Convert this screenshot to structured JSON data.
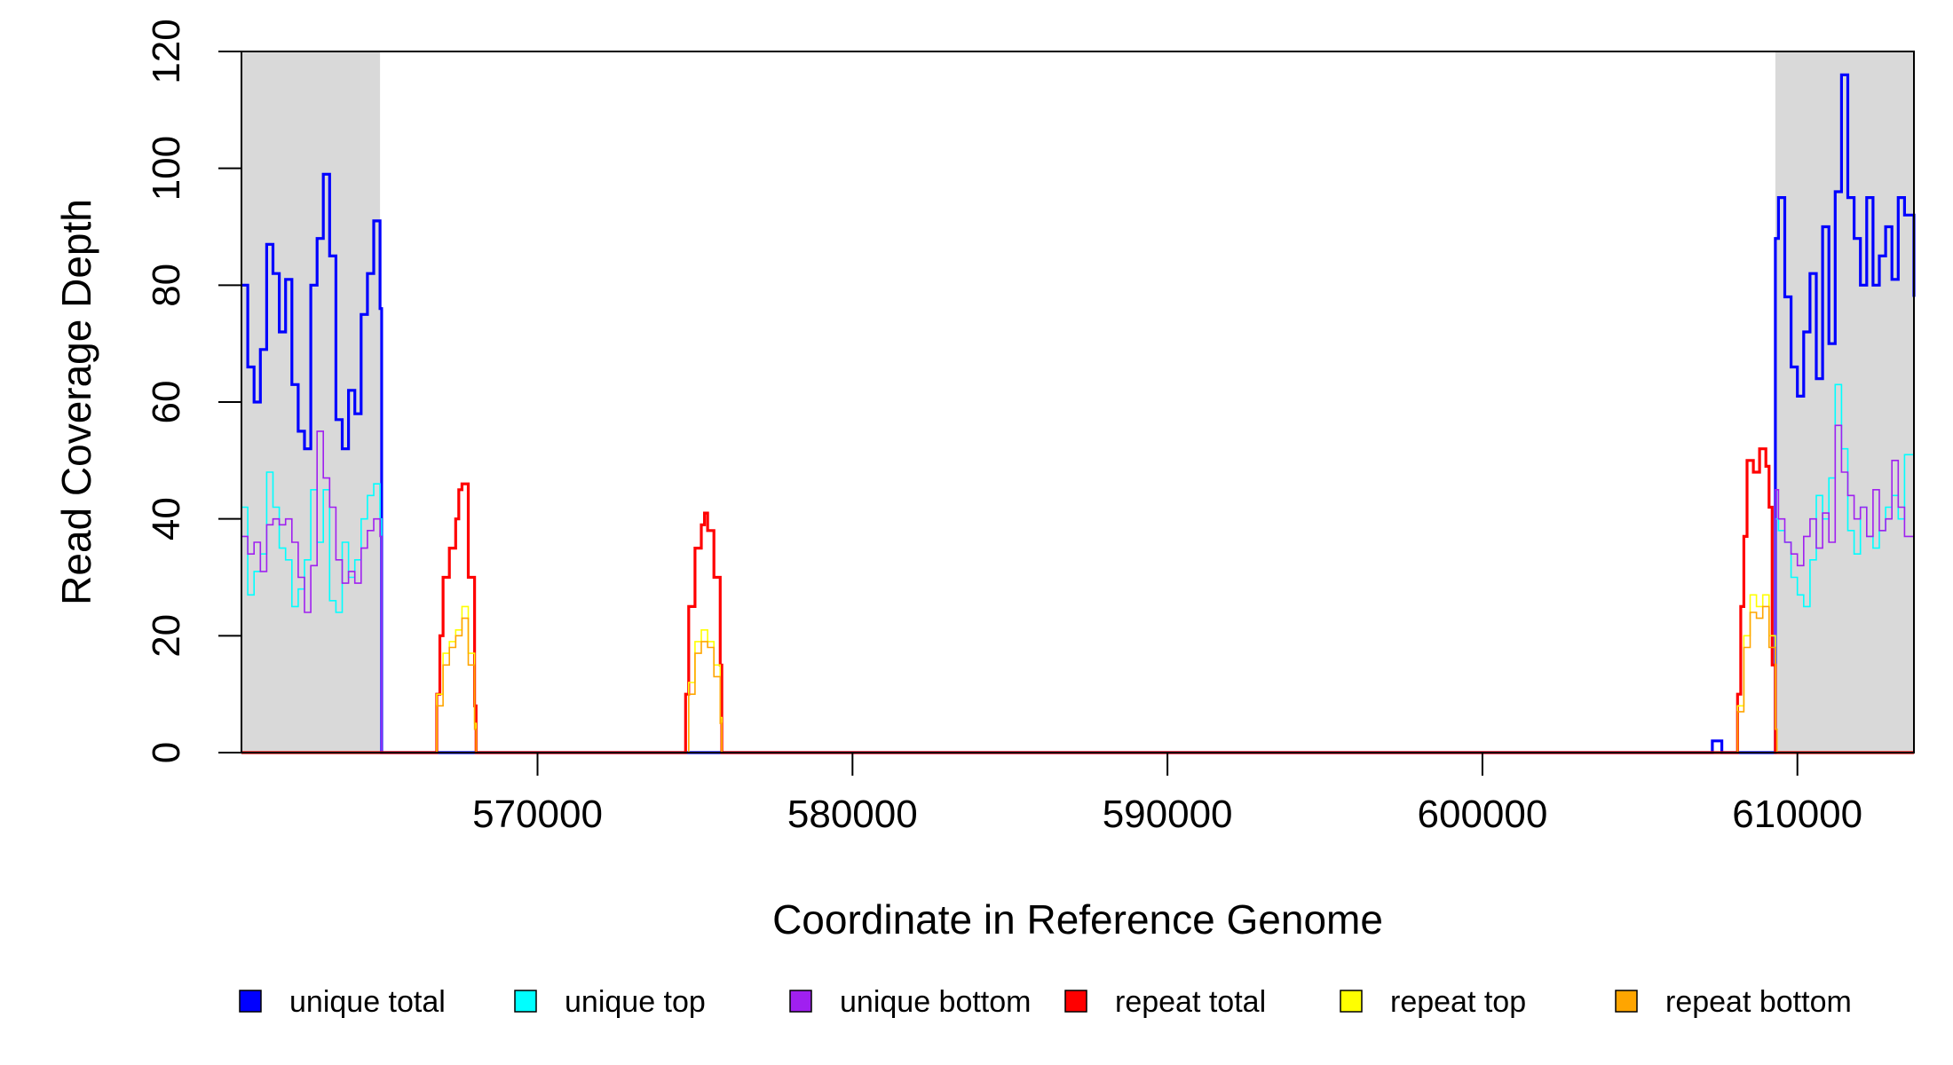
{
  "chart_data": {
    "type": "line",
    "title": "",
    "xlabel": "Coordinate in Reference Genome",
    "ylabel": "Read Coverage Depth",
    "xlim": [
      560600,
      613700
    ],
    "ylim": [
      0,
      120
    ],
    "x_ticks": [
      570000,
      580000,
      590000,
      600000,
      610000
    ],
    "x_tick_labels": [
      "570000",
      "580000",
      "590000",
      "600000",
      "610000"
    ],
    "y_ticks": [
      0,
      20,
      40,
      60,
      80,
      100,
      120
    ],
    "y_tick_labels": [
      "0",
      "20",
      "40",
      "60",
      "80",
      "100",
      "120"
    ],
    "grid": false,
    "legend_position": "bottom",
    "shaded_regions": [
      {
        "x0": 560600,
        "x1": 565000
      },
      {
        "x0": 609300,
        "x1": 613700
      }
    ],
    "series": [
      {
        "name": "unique total",
        "color": "#0000ff",
        "x": [
          560600,
          560800,
          561000,
          561200,
          561400,
          561600,
          561800,
          562000,
          562200,
          562400,
          562600,
          562800,
          563000,
          563200,
          563400,
          563600,
          563800,
          564000,
          564200,
          564400,
          564600,
          564800,
          565000,
          565050,
          566000,
          567000,
          568000,
          569000,
          570000,
          575000,
          580000,
          590000,
          600000,
          607200,
          607300,
          607500,
          607600,
          608000,
          609200,
          609300,
          609400,
          609600,
          609800,
          610000,
          610200,
          610400,
          610600,
          610800,
          611000,
          611200,
          611400,
          611600,
          611800,
          612000,
          612200,
          612400,
          612600,
          612800,
          613000,
          613200,
          613400,
          613700
        ],
        "values": [
          80,
          66,
          60,
          69,
          87,
          82,
          72,
          81,
          63,
          55,
          52,
          80,
          88,
          99,
          85,
          57,
          52,
          62,
          58,
          75,
          82,
          91,
          76,
          0,
          0,
          0,
          0,
          0,
          0,
          0,
          0,
          0,
          0,
          0,
          2,
          2,
          0,
          0,
          0,
          88,
          95,
          78,
          66,
          61,
          72,
          82,
          64,
          90,
          70,
          96,
          116,
          95,
          88,
          80,
          95,
          80,
          85,
          90,
          81,
          95,
          92,
          78
        ],
        "stroke_width": 3.2
      },
      {
        "name": "unique top",
        "color": "#00ffff",
        "x": [
          560600,
          560800,
          561000,
          561200,
          561400,
          561600,
          561800,
          562000,
          562200,
          562400,
          562600,
          562800,
          563000,
          563200,
          563400,
          563600,
          563800,
          564000,
          564200,
          564400,
          564600,
          564800,
          565000,
          565050,
          609300,
          609400,
          609600,
          609800,
          610000,
          610200,
          610400,
          610600,
          610800,
          611000,
          611200,
          611400,
          611600,
          611800,
          612000,
          612200,
          612400,
          612600,
          612800,
          613000,
          613200,
          613400,
          613700
        ],
        "values": [
          42,
          27,
          31,
          34,
          48,
          42,
          35,
          33,
          25,
          28,
          33,
          45,
          36,
          45,
          26,
          24,
          36,
          30,
          33,
          40,
          44,
          46,
          40,
          0,
          40,
          38,
          36,
          30,
          27,
          25,
          33,
          44,
          40,
          47,
          63,
          52,
          38,
          34,
          42,
          37,
          35,
          38,
          42,
          44,
          40,
          51,
          42
        ],
        "stroke_width": 1.6
      },
      {
        "name": "unique bottom",
        "color": "#a020f0",
        "x": [
          560600,
          560800,
          561000,
          561200,
          561400,
          561600,
          561800,
          562000,
          562200,
          562400,
          562600,
          562800,
          563000,
          563200,
          563400,
          563600,
          563800,
          564000,
          564200,
          564400,
          564600,
          564800,
          565000,
          565050,
          609300,
          609400,
          609600,
          609800,
          610000,
          610200,
          610400,
          610600,
          610800,
          611000,
          611200,
          611400,
          611600,
          611800,
          612000,
          612200,
          612400,
          612600,
          612800,
          613000,
          613200,
          613400,
          613700
        ],
        "values": [
          37,
          34,
          36,
          31,
          39,
          40,
          39,
          40,
          36,
          30,
          24,
          32,
          55,
          47,
          42,
          33,
          29,
          31,
          29,
          35,
          38,
          40,
          37,
          0,
          45,
          40,
          36,
          34,
          32,
          37,
          40,
          35,
          41,
          36,
          56,
          48,
          44,
          40,
          42,
          37,
          45,
          38,
          40,
          50,
          42,
          37,
          40
        ],
        "stroke_width": 1.6
      },
      {
        "name": "repeat total",
        "color": "#ff0000",
        "x": [
          560600,
          566600,
          566800,
          566900,
          567000,
          567200,
          567400,
          567500,
          567600,
          567800,
          568000,
          568050,
          574600,
          574700,
          574800,
          575000,
          575200,
          575300,
          575400,
          575600,
          575800,
          575850,
          608000,
          608100,
          608200,
          608300,
          608400,
          608600,
          608800,
          609000,
          609100,
          609200,
          609300,
          613700
        ],
        "values": [
          0,
          0,
          10,
          20,
          30,
          35,
          40,
          45,
          46,
          30,
          8,
          0,
          0,
          10,
          25,
          35,
          39,
          41,
          38,
          30,
          15,
          0,
          0,
          10,
          25,
          37,
          50,
          48,
          52,
          49,
          42,
          15,
          0,
          0
        ],
        "stroke_width": 3.2
      },
      {
        "name": "repeat top",
        "color": "#ffff00",
        "x": [
          560600,
          566600,
          566800,
          567000,
          567200,
          567400,
          567600,
          567800,
          568000,
          568050,
          574600,
          574800,
          575000,
          575200,
          575400,
          575600,
          575800,
          575850,
          608000,
          608100,
          608300,
          608500,
          608700,
          608900,
          609100,
          609300,
          609350,
          613700
        ],
        "values": [
          0,
          0,
          10,
          17,
          19,
          21,
          25,
          17,
          5,
          0,
          0,
          12,
          19,
          21,
          19,
          15,
          6,
          0,
          0,
          8,
          20,
          27,
          25,
          27,
          20,
          4,
          0,
          0
        ],
        "stroke_width": 1.6
      },
      {
        "name": "repeat bottom",
        "color": "#ffa500",
        "x": [
          560600,
          566600,
          566800,
          567000,
          567200,
          567400,
          567600,
          567800,
          568000,
          568050,
          574600,
          574800,
          575000,
          575200,
          575400,
          575600,
          575800,
          575850,
          608000,
          608100,
          608300,
          608500,
          608700,
          608900,
          609100,
          609300,
          609350,
          613700
        ],
        "values": [
          0,
          0,
          8,
          15,
          18,
          20,
          23,
          15,
          4,
          0,
          0,
          10,
          17,
          19,
          18,
          13,
          5,
          0,
          0,
          7,
          18,
          24,
          23,
          25,
          18,
          4,
          0,
          0
        ],
        "stroke_width": 1.6
      }
    ]
  }
}
